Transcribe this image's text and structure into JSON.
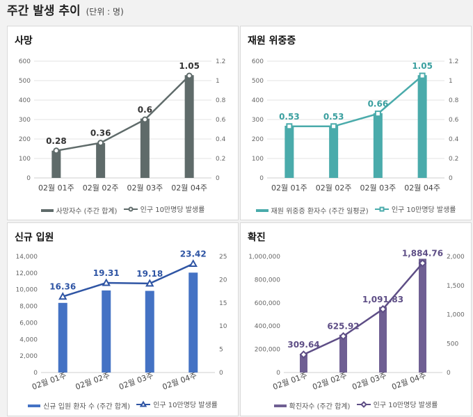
{
  "header": {
    "title": "주간 발생 추이",
    "unit": "(단위 : 명)"
  },
  "chart_data": [
    {
      "id": "death",
      "title": "사망",
      "type": "bar+line",
      "categories": [
        "02월 01주",
        "02월 02주",
        "02월 03주",
        "02월 04주"
      ],
      "bar_series": {
        "name": "사망자수 (주간 합계)",
        "values": [
          140,
          180,
          305,
          528
        ],
        "color": "#5f6b6a"
      },
      "line_series": {
        "name": "인구 10만명당 발생률",
        "values": [
          0.28,
          0.36,
          0.6,
          1.05
        ],
        "labels": [
          "0.28",
          "0.36",
          "0.6",
          "1.05"
        ],
        "color": "#5f6b6a",
        "marker": "circle"
      },
      "y_left": {
        "min": 0,
        "max": 600,
        "ticks": [
          "0",
          "100",
          "200",
          "300",
          "400",
          "500",
          "600"
        ]
      },
      "y_right": {
        "min": 0,
        "max": 1.2,
        "ticks": [
          "0",
          "0.2",
          "0.4",
          "0.6",
          "0.8",
          "1",
          "1.2"
        ]
      },
      "label_color": "#333333",
      "grid": true
    },
    {
      "id": "severe",
      "title": "재원 위중증",
      "type": "bar+line",
      "categories": [
        "02월 01주",
        "02월 02주",
        "02월 03주",
        "02월 04주"
      ],
      "bar_series": {
        "name": "재원 위중증 환자수 (주간 일평균)",
        "values": [
          268,
          268,
          333,
          528
        ],
        "color": "#4aabab"
      },
      "line_series": {
        "name": "인구 10만명당 발생률",
        "values": [
          0.53,
          0.53,
          0.66,
          1.05
        ],
        "labels": [
          "0.53",
          "0.53",
          "0.66",
          "1.05"
        ],
        "color": "#4aabab",
        "marker": "square"
      },
      "y_left": {
        "min": 0,
        "max": 600,
        "ticks": [
          "0",
          "100",
          "200",
          "300",
          "400",
          "500",
          "600"
        ]
      },
      "y_right": {
        "min": 0,
        "max": 1.2,
        "ticks": [
          "0",
          "0.2",
          "0.4",
          "0.6",
          "0.8",
          "1",
          "1.2"
        ]
      },
      "label_color": "#3a9f9f",
      "grid": true
    },
    {
      "id": "hospital",
      "title": "신규 입원",
      "type": "bar+line",
      "categories": [
        "02월 01주",
        "02월 02주",
        "02월 03주",
        "02월 04주"
      ],
      "bar_series": {
        "name": "신규 입원 환자 수 (주간 합계)",
        "values": [
          8400,
          9900,
          9850,
          12050
        ],
        "color": "#4472c4"
      },
      "line_series": {
        "name": "인구 10만명당 발생률",
        "values": [
          16.36,
          19.31,
          19.18,
          23.42
        ],
        "labels": [
          "16.36",
          "19.31",
          "19.18",
          "23.42"
        ],
        "color": "#2f55a4",
        "marker": "triangle"
      },
      "y_left": {
        "min": 0,
        "max": 14000,
        "ticks": [
          "0",
          "2,000",
          "4,000",
          "6,000",
          "8,000",
          "10,000",
          "12,000",
          "14,000"
        ]
      },
      "y_right": {
        "min": 0,
        "max": 25,
        "ticks": [
          "0",
          "5",
          "10",
          "15",
          "20",
          "25"
        ]
      },
      "label_color": "#2f55a4",
      "grid": false
    },
    {
      "id": "confirmed",
      "title": "확진",
      "type": "bar+line",
      "categories": [
        "02월 01주",
        "02월 02주",
        "02월 03주",
        "02월 04주"
      ],
      "bar_series": {
        "name": "확진자수 (주간 합계)",
        "values": [
          160000,
          325000,
          565000,
          980000
        ],
        "color": "#6f5f93"
      },
      "line_series": {
        "name": "인구 10만명당 발생률",
        "values": [
          309.64,
          625.92,
          1091.83,
          1884.76
        ],
        "labels": [
          "309.64",
          "625.92",
          "1,091.83",
          "1,884.76"
        ],
        "color": "#5e4e86",
        "marker": "diamond"
      },
      "y_left": {
        "min": 0,
        "max": 1000000,
        "ticks": [
          "0",
          "200,000",
          "400,000",
          "600,000",
          "800,000",
          "1,000,000"
        ]
      },
      "y_right": {
        "min": 0,
        "max": 2000,
        "ticks": [
          "0",
          "500",
          "1,000",
          "1,500",
          "2,000"
        ]
      },
      "label_color": "#5e4e86",
      "grid": false
    }
  ]
}
